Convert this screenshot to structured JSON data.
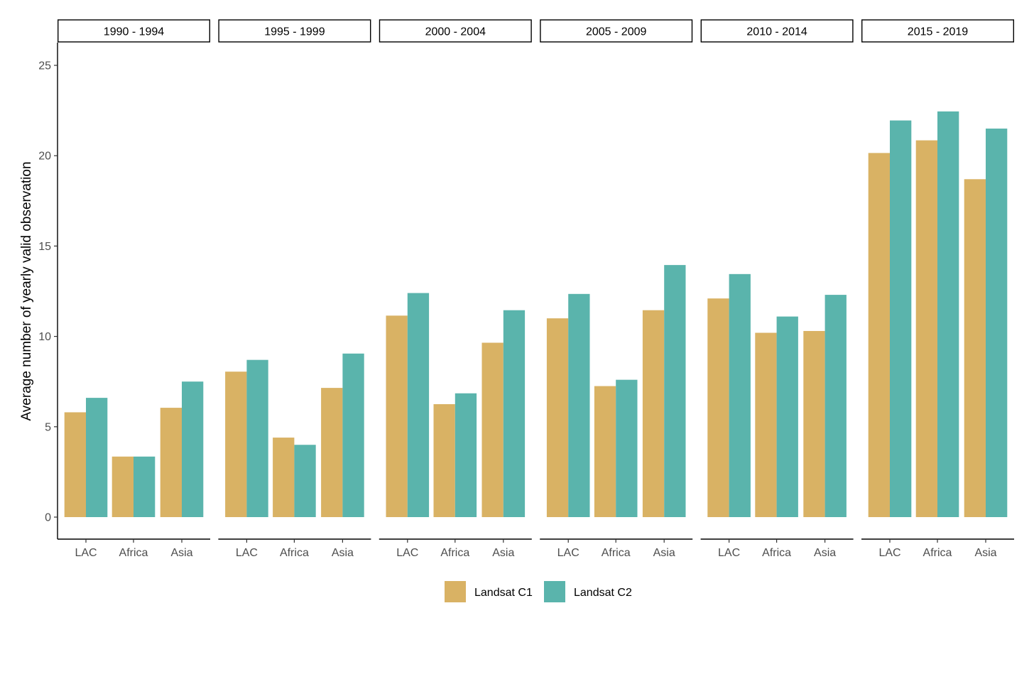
{
  "chart_data": {
    "type": "bar",
    "ylabel": "Average number of yearly valid observation",
    "xlabel": "",
    "ylim": [
      0,
      25
    ],
    "yticks": [
      0,
      5,
      10,
      15,
      20,
      25
    ],
    "grid": false,
    "legend_position": "bottom",
    "categories": [
      "LAC",
      "Africa",
      "Asia"
    ],
    "panels": [
      {
        "label": "1990 - 1994",
        "series": [
          {
            "name": "Landsat C1",
            "values": [
              5.8,
              3.35,
              6.05
            ]
          },
          {
            "name": "Landsat C2",
            "values": [
              6.6,
              3.35,
              7.5
            ]
          }
        ]
      },
      {
        "label": "1995 - 1999",
        "series": [
          {
            "name": "Landsat C1",
            "values": [
              8.05,
              4.4,
              7.15
            ]
          },
          {
            "name": "Landsat C2",
            "values": [
              8.7,
              4.0,
              9.05
            ]
          }
        ]
      },
      {
        "label": "2000 - 2004",
        "series": [
          {
            "name": "Landsat C1",
            "values": [
              11.15,
              6.25,
              9.65
            ]
          },
          {
            "name": "Landsat C2",
            "values": [
              12.4,
              6.85,
              11.45
            ]
          }
        ]
      },
      {
        "label": "2005 - 2009",
        "series": [
          {
            "name": "Landsat C1",
            "values": [
              11.0,
              7.25,
              11.45
            ]
          },
          {
            "name": "Landsat C2",
            "values": [
              12.35,
              7.6,
              13.95
            ]
          }
        ]
      },
      {
        "label": "2010 - 2014",
        "series": [
          {
            "name": "Landsat C1",
            "values": [
              12.1,
              10.2,
              10.3
            ]
          },
          {
            "name": "Landsat C2",
            "values": [
              13.45,
              11.1,
              12.3
            ]
          }
        ]
      },
      {
        "label": "2015 - 2019",
        "series": [
          {
            "name": "Landsat C1",
            "values": [
              20.15,
              20.85,
              18.7
            ]
          },
          {
            "name": "Landsat C2",
            "values": [
              21.95,
              22.45,
              21.5
            ]
          }
        ]
      }
    ],
    "legend": [
      {
        "name": "Landsat C1",
        "color": "#D9B264"
      },
      {
        "name": "Landsat C2",
        "color": "#5AB4AC"
      }
    ]
  }
}
